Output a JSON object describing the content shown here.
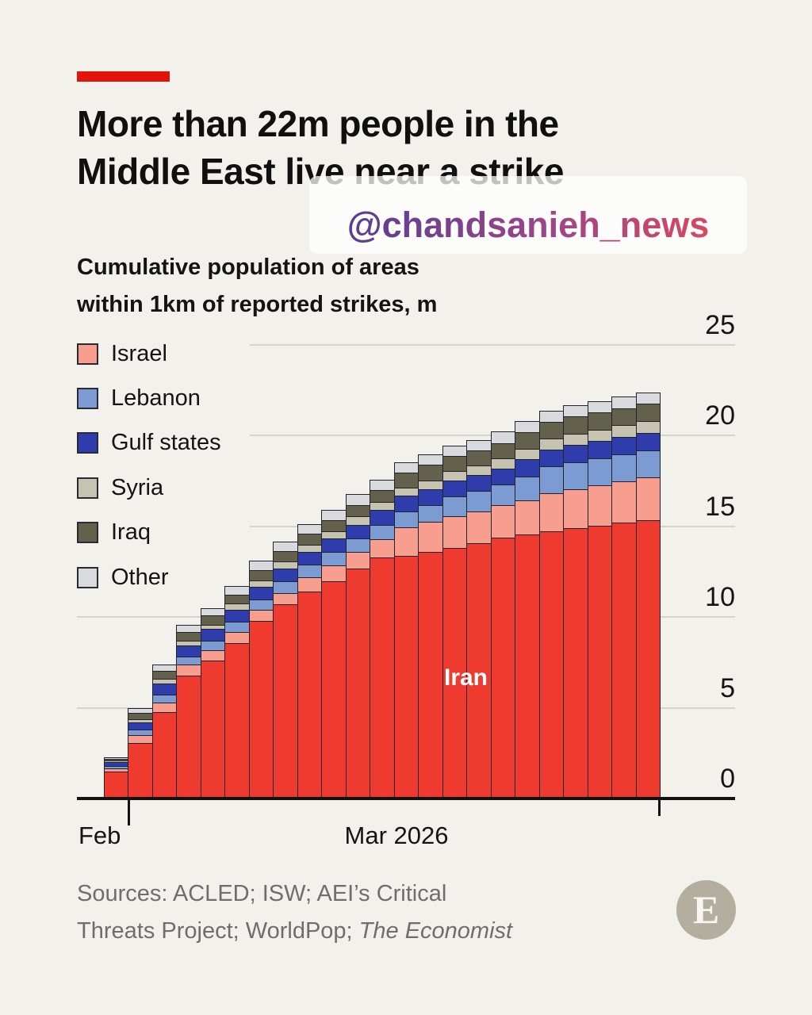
{
  "header": {
    "accent_color": "#e3120b",
    "title_line1": "More than 22m people in the",
    "title_line2": "Middle East live near a strike"
  },
  "watermark": {
    "handle": "@chandsanieh_news",
    "gradient": [
      "#4a3d94",
      "#9a4587",
      "#e4485a"
    ]
  },
  "subtitle": {
    "line1": "Cumulative population of areas",
    "line2": "within 1km of reported strikes, m"
  },
  "legend": {
    "items": [
      {
        "label": "Israel",
        "color": "#f89e8f"
      },
      {
        "label": "Lebanon",
        "color": "#7b9bd2"
      },
      {
        "label": "Gulf states",
        "color": "#2e3dab"
      },
      {
        "label": "Syria",
        "color": "#c6c3b1"
      },
      {
        "label": "Iraq",
        "color": "#63604b"
      },
      {
        "label": "Other",
        "color": "#d9dade"
      }
    ]
  },
  "chart_data": {
    "type": "bar",
    "subtype": "stacked-bar",
    "title": "More than 22m people in the Middle East live near a strike",
    "subtitle": "Cumulative population of areas within 1km of reported strikes, m",
    "unit": "m",
    "ylim": [
      0,
      25
    ],
    "y_ticks": [
      0,
      5,
      10,
      15,
      20,
      25
    ],
    "grid": true,
    "legend_position": "left",
    "x_axis": {
      "start_label": "Feb",
      "end_label": "Mar 2026"
    },
    "in_bar_label": "Iran",
    "n_bars": 23,
    "series": [
      {
        "name": "Iran",
        "color": "#ee3a2f",
        "values": [
          1.5,
          3.1,
          4.8,
          6.8,
          7.6,
          8.6,
          9.8,
          10.7,
          11.4,
          12.0,
          12.7,
          13.3,
          13.4,
          13.6,
          13.8,
          14.1,
          14.4,
          14.55,
          14.75,
          14.9,
          15.05,
          15.2,
          15.35
        ]
      },
      {
        "name": "Israel",
        "color": "#f89e8f",
        "values": [
          0.2,
          0.4,
          0.5,
          0.6,
          0.6,
          0.6,
          0.6,
          0.65,
          0.8,
          0.85,
          0.9,
          1.0,
          1.55,
          1.65,
          1.75,
          1.75,
          1.8,
          1.9,
          2.1,
          2.15,
          2.2,
          2.28,
          2.35
        ]
      },
      {
        "name": "Lebanon",
        "color": "#7b9bd2",
        "values": [
          0.1,
          0.3,
          0.45,
          0.45,
          0.5,
          0.55,
          0.6,
          0.65,
          0.7,
          0.75,
          0.75,
          0.8,
          0.9,
          0.95,
          1.1,
          1.1,
          1.1,
          1.3,
          1.45,
          1.5,
          1.5,
          1.5,
          1.5
        ]
      },
      {
        "name": "Gulf states",
        "color": "#2e3dab",
        "values": [
          0.25,
          0.4,
          0.6,
          0.6,
          0.65,
          0.65,
          0.7,
          0.7,
          0.7,
          0.75,
          0.75,
          0.8,
          0.85,
          0.85,
          0.9,
          0.9,
          0.9,
          0.95,
          0.95,
          0.95,
          0.95,
          0.95,
          0.95
        ]
      },
      {
        "name": "Syria",
        "color": "#c6c3b1",
        "values": [
          0.05,
          0.2,
          0.25,
          0.25,
          0.25,
          0.35,
          0.35,
          0.4,
          0.4,
          0.4,
          0.45,
          0.45,
          0.45,
          0.5,
          0.5,
          0.5,
          0.55,
          0.6,
          0.6,
          0.6,
          0.62,
          0.64,
          0.65
        ]
      },
      {
        "name": "Iraq",
        "color": "#63604b",
        "values": [
          0.1,
          0.35,
          0.45,
          0.5,
          0.5,
          0.5,
          0.55,
          0.55,
          0.6,
          0.6,
          0.65,
          0.65,
          0.8,
          0.85,
          0.85,
          0.85,
          0.85,
          0.9,
          0.9,
          0.95,
          0.95,
          0.95,
          0.95
        ]
      },
      {
        "name": "Other",
        "color": "#d9dade",
        "values": [
          0.05,
          0.25,
          0.35,
          0.35,
          0.4,
          0.45,
          0.5,
          0.5,
          0.5,
          0.55,
          0.55,
          0.55,
          0.55,
          0.55,
          0.55,
          0.55,
          0.6,
          0.6,
          0.6,
          0.6,
          0.62,
          0.62,
          0.62
        ]
      }
    ]
  },
  "sources": {
    "line1": "Sources: ACLED; ISW; AEI’s Critical",
    "line2_prefix": "Threats Project; WorldPop; ",
    "line2_italic": "The Economist"
  },
  "logo": {
    "letter": "E",
    "color": "#b3ae9d"
  }
}
